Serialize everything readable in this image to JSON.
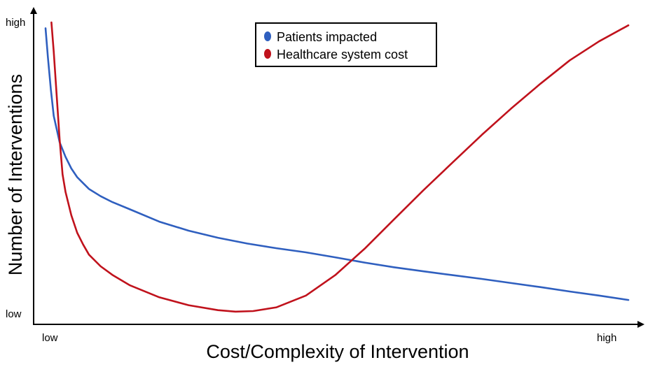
{
  "chart_data": {
    "type": "line",
    "title": "",
    "xlabel": "Cost/Complexity of Intervention",
    "ylabel": "Number of Interventions",
    "x_tick_labels": [
      "low",
      "high"
    ],
    "y_tick_labels": [
      "high",
      "low"
    ],
    "xlim": [
      0,
      100
    ],
    "ylim": [
      0,
      100
    ],
    "grid": false,
    "legend_position": "top-center",
    "series": [
      {
        "name": "Patients impacted",
        "color": "#2f5fbf",
        "x": [
          0.6,
          1,
          1.5,
          2,
          3,
          4,
          5,
          6,
          7,
          8,
          10,
          12,
          15,
          20,
          25,
          30,
          35,
          40,
          45,
          50,
          55,
          60,
          65,
          70,
          75,
          80,
          85,
          90,
          95,
          100
        ],
        "y": [
          98,
          88,
          77,
          68,
          59,
          54,
          50,
          47,
          45,
          43,
          40.5,
          38.5,
          36,
          31.8,
          28.7,
          26.3,
          24.3,
          22.7,
          21.3,
          19.6,
          17.8,
          16.2,
          14.8,
          13.5,
          12.2,
          10.8,
          9.4,
          7.9,
          6.5,
          5
        ]
      },
      {
        "name": "Healthcare system cost",
        "color": "#c0121c",
        "x": [
          1.6,
          2,
          2.5,
          3,
          3.5,
          4,
          5,
          6,
          7,
          8,
          10,
          12,
          15,
          20,
          25,
          30,
          33,
          36,
          40,
          45,
          50,
          55,
          60,
          65,
          70,
          75,
          80,
          85,
          90,
          95,
          100
        ],
        "y": [
          100,
          90,
          75,
          60,
          48,
          42,
          34,
          28,
          24,
          20.5,
          16.5,
          13.6,
          10,
          5.9,
          3.2,
          1.5,
          1,
          1.2,
          2.5,
          6.5,
          13.5,
          22.5,
          32.5,
          42.5,
          52,
          61.5,
          70.5,
          79,
          87,
          93.5,
          99
        ]
      }
    ]
  }
}
